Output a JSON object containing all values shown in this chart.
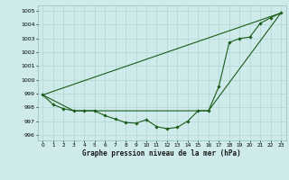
{
  "title": "Graphe pression niveau de la mer (hPa)",
  "background_color": "#ceeaea",
  "grid_color": "#b8d8d8",
  "line_color": "#1a5c1a",
  "marker_color": "#1a5c1a",
  "xlim": [
    -0.5,
    23.5
  ],
  "ylim": [
    995.6,
    1005.4
  ],
  "yticks": [
    996,
    997,
    998,
    999,
    1000,
    1001,
    1002,
    1003,
    1004,
    1005
  ],
  "xticks": [
    0,
    1,
    2,
    3,
    4,
    5,
    6,
    7,
    8,
    9,
    10,
    11,
    12,
    13,
    14,
    15,
    16,
    17,
    18,
    19,
    20,
    21,
    22,
    23
  ],
  "series1_x": [
    0,
    1,
    2,
    3,
    4,
    5,
    6,
    7,
    8,
    9,
    10,
    11,
    12,
    13,
    14,
    15,
    16,
    17,
    18,
    19,
    20,
    21,
    22,
    23
  ],
  "series1_y": [
    998.9,
    998.2,
    997.9,
    997.75,
    997.75,
    997.75,
    997.4,
    997.15,
    996.9,
    996.85,
    997.1,
    996.6,
    996.45,
    996.55,
    997.0,
    997.75,
    997.75,
    999.5,
    1002.7,
    1003.0,
    1003.1,
    1004.1,
    1004.5,
    1004.85
  ],
  "line2_x": [
    0,
    23
  ],
  "line2_y": [
    998.9,
    1004.85
  ],
  "line3_x": [
    0,
    3,
    16,
    23
  ],
  "line3_y": [
    998.9,
    997.75,
    997.75,
    1004.85
  ]
}
